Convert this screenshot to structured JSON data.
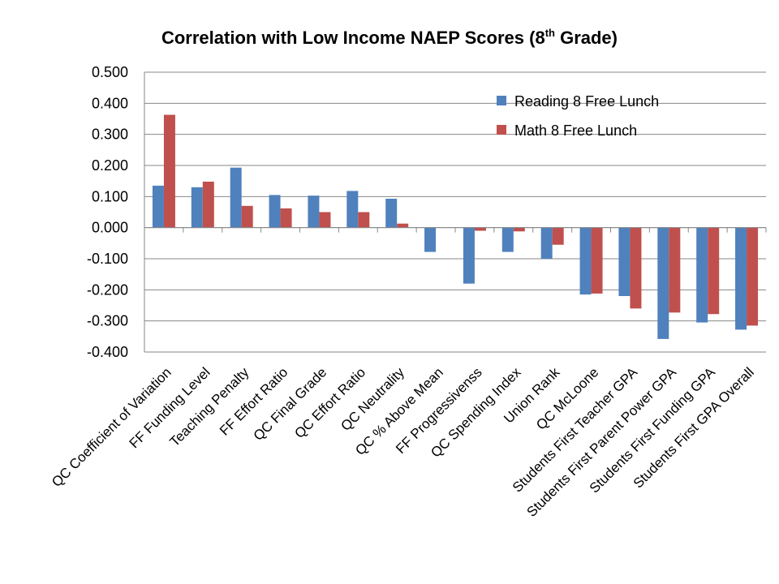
{
  "chart_data": {
    "type": "bar",
    "title": "Correlation with Low Income NAEP Scores (8",
    "title_sup": "th",
    "title_end": " Grade)",
    "xlabel": "",
    "ylabel": "",
    "ylim": [
      -0.4,
      0.5
    ],
    "ytick_step": 0.1,
    "ytick_labels": [
      "0.500",
      "0.400",
      "0.300",
      "0.200",
      "0.100",
      "0.000",
      "-0.100",
      "-0.200",
      "-0.300",
      "-0.400"
    ],
    "grid": true,
    "legend_position": "top-right",
    "categories": [
      "QC Coefficient of Variation",
      "FF Funding Level",
      "Teaching Penalty",
      "FF Effort Ratio",
      "QC Final Grade",
      "QC Effort Ratio",
      "QC Neutrality",
      "QC % Above Mean",
      "FF Progressivenss",
      "QC Spending Index",
      "Union Rank",
      "QC McLoone",
      "Students First Teacher GPA",
      "Students First Parent Power GPA",
      "Students First Funding GPA",
      "Students First GPA Overall"
    ],
    "series": [
      {
        "name": "Reading 8 Free Lunch",
        "color": "#4F81BD",
        "values": [
          0.135,
          0.13,
          0.193,
          0.105,
          0.103,
          0.118,
          0.093,
          -0.078,
          -0.18,
          -0.078,
          -0.1,
          -0.215,
          -0.22,
          -0.358,
          -0.305,
          -0.328
        ]
      },
      {
        "name": "Math 8 Free Lunch",
        "color": "#C0504D",
        "values": [
          0.363,
          0.148,
          0.07,
          0.062,
          0.05,
          0.05,
          0.013,
          0.0,
          -0.01,
          -0.012,
          -0.055,
          -0.212,
          -0.26,
          -0.273,
          -0.278,
          -0.315
        ]
      }
    ]
  }
}
